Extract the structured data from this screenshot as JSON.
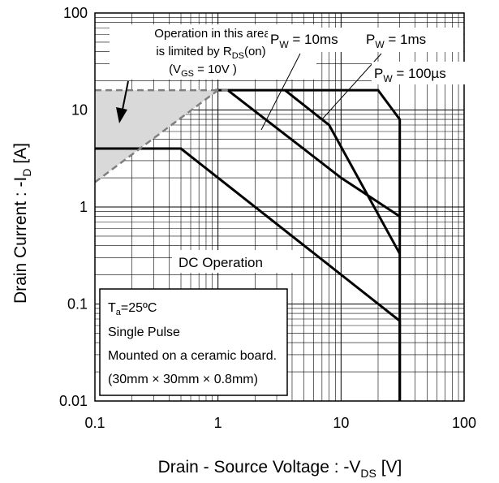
{
  "chart_data": {
    "type": "line",
    "xscale": "log",
    "yscale": "log",
    "xlim": [
      0.1,
      100
    ],
    "ylim": [
      0.01,
      100
    ],
    "grid": true,
    "xlabel": {
      "prefix": "Drain - Source Voltage : -V",
      "sub": "DS",
      "suffix": " [V]"
    },
    "ylabel": {
      "prefix": "Drain Current : -I",
      "sub": "D",
      "suffix": " [A]"
    },
    "x_ticks": [
      {
        "value": 0.1,
        "label": "0.1"
      },
      {
        "value": 1,
        "label": "1"
      },
      {
        "value": 10,
        "label": "10"
      },
      {
        "value": 100,
        "label": "100"
      }
    ],
    "y_ticks": [
      {
        "value": 0.01,
        "label": "0.01"
      },
      {
        "value": 0.1,
        "label": "0.1"
      },
      {
        "value": 1,
        "label": "1"
      },
      {
        "value": 10,
        "label": "10"
      },
      {
        "value": 100,
        "label": "100"
      }
    ],
    "series": [
      {
        "name": "DC Operation",
        "x": [
          0.1,
          0.5,
          30,
          30
        ],
        "y": [
          4,
          4,
          0.067,
          0.01
        ]
      },
      {
        "name": "PW = 10ms",
        "x": [
          1.2,
          10,
          30
        ],
        "y": [
          16,
          2,
          0.8
        ]
      },
      {
        "name": "PW = 1ms",
        "x": [
          3.5,
          8,
          30
        ],
        "y": [
          16,
          7,
          0.33
        ]
      },
      {
        "name": "PW = 100µs",
        "x": [
          0.95,
          20,
          30,
          30
        ],
        "y": [
          16,
          16,
          8,
          0.01
        ]
      }
    ],
    "rds_limit_line": {
      "x": [
        0.1,
        1,
        1.2
      ],
      "y": [
        1.8,
        16,
        16
      ]
    },
    "current_limit_line": {
      "x": [
        0.1,
        1.2
      ],
      "y": [
        16,
        16
      ]
    },
    "shaded_region_color": "#d9d9d9",
    "annotations": {
      "rds_note": {
        "line1": "Operation in this area",
        "line2_prefix": "is limited by R",
        "line2_sub": "DS",
        "line2_suffix": "(on)",
        "line3_prefix": "(V",
        "line3_sub": "GS",
        "line3_suffix": " = 10V )"
      },
      "pw_10ms": {
        "prefix": "P",
        "sub": "W",
        "suffix": " = 10ms"
      },
      "pw_1ms": {
        "prefix": "P",
        "sub": "W",
        "suffix": " = 1ms"
      },
      "pw_100us": {
        "prefix": "P",
        "sub": "W",
        "suffix": " = 100µs"
      },
      "dc_label": "DC Operation"
    },
    "info_box": {
      "ta_prefix": "T",
      "ta_sub": "a",
      "ta_suffix": "=25ºC",
      "line2": "Single Pulse",
      "line3": "Mounted on a ceramic board.",
      "line4": "(30mm × 30mm × 0.8mm)"
    }
  }
}
